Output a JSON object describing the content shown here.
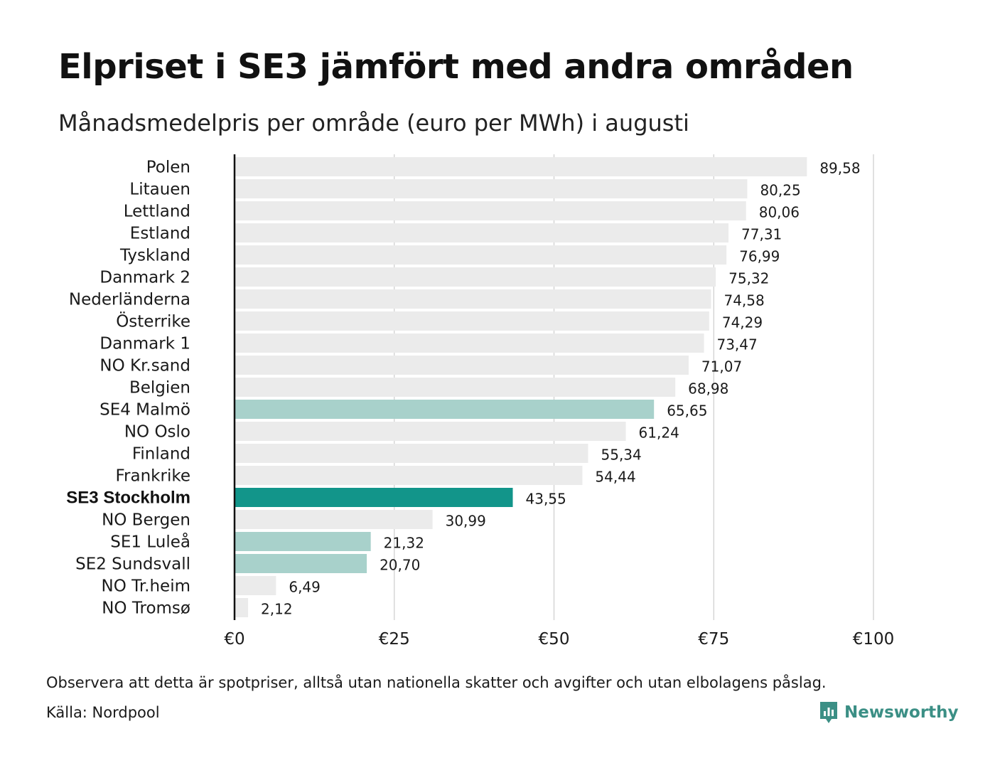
{
  "header": {
    "title": "Elpriset i SE3 jämfört med andra områden",
    "subtitle": "Månadsmedelpris per område (euro per MWh) i augusti"
  },
  "footer": {
    "note": "Observera att detta är spotpriser, alltså utan nationella skatter och avgifter och utan elbolagens påslag.",
    "source": "Källa: Nordpool",
    "brand": "Newsworthy",
    "brand_icon": "newsworthy-logo-icon",
    "brand_color": "#3b8f85"
  },
  "chart_data": {
    "type": "bar",
    "orientation": "horizontal",
    "title": "Elpriset i SE3 jämfört med andra områden",
    "subtitle": "Månadsmedelpris per område (euro per MWh) i augusti",
    "xlabel": "",
    "ylabel": "",
    "xlim": [
      0,
      100
    ],
    "grid": true,
    "x_ticks": [
      {
        "value": 0,
        "label": "€0"
      },
      {
        "value": 25,
        "label": "€25"
      },
      {
        "value": 50,
        "label": "€50"
      },
      {
        "value": 75,
        "label": "€75"
      },
      {
        "value": 100,
        "label": "€100"
      }
    ],
    "colors": {
      "default": "#ebebeb",
      "swedish_area": "#a8d1cb",
      "highlight": "#12958a",
      "grid": "#cccccc",
      "axis": "#111111"
    },
    "categories": [
      "Polen",
      "Litauen",
      "Lettland",
      "Estland",
      "Tyskland",
      "Danmark 2",
      "Nederländerna",
      "Österrike",
      "Danmark 1",
      "NO Kr.sand",
      "Belgien",
      "SE4 Malmö",
      "NO Oslo",
      "Finland",
      "Frankrike",
      "SE3 Stockholm",
      "NO Bergen",
      "SE1 Luleå",
      "SE2 Sundsvall",
      "NO Tr.heim",
      "NO Tromsø"
    ],
    "values": [
      89.58,
      80.25,
      80.06,
      77.31,
      76.99,
      75.32,
      74.58,
      74.29,
      73.47,
      71.07,
      68.98,
      65.65,
      61.24,
      55.34,
      54.44,
      43.55,
      30.99,
      21.32,
      20.7,
      6.49,
      2.12
    ],
    "value_labels": [
      "89,58",
      "80,25",
      "80,06",
      "77,31",
      "76,99",
      "75,32",
      "74,58",
      "74,29",
      "73,47",
      "71,07",
      "68,98",
      "65,65",
      "61,24",
      "55,34",
      "54,44",
      "43,55",
      "30,99",
      "21,32",
      "20,70",
      "6,49",
      "2,12"
    ],
    "bar_style": [
      "default",
      "default",
      "default",
      "default",
      "default",
      "default",
      "default",
      "default",
      "default",
      "default",
      "default",
      "swedish_area",
      "default",
      "default",
      "default",
      "highlight",
      "default",
      "swedish_area",
      "swedish_area",
      "default",
      "default"
    ]
  }
}
